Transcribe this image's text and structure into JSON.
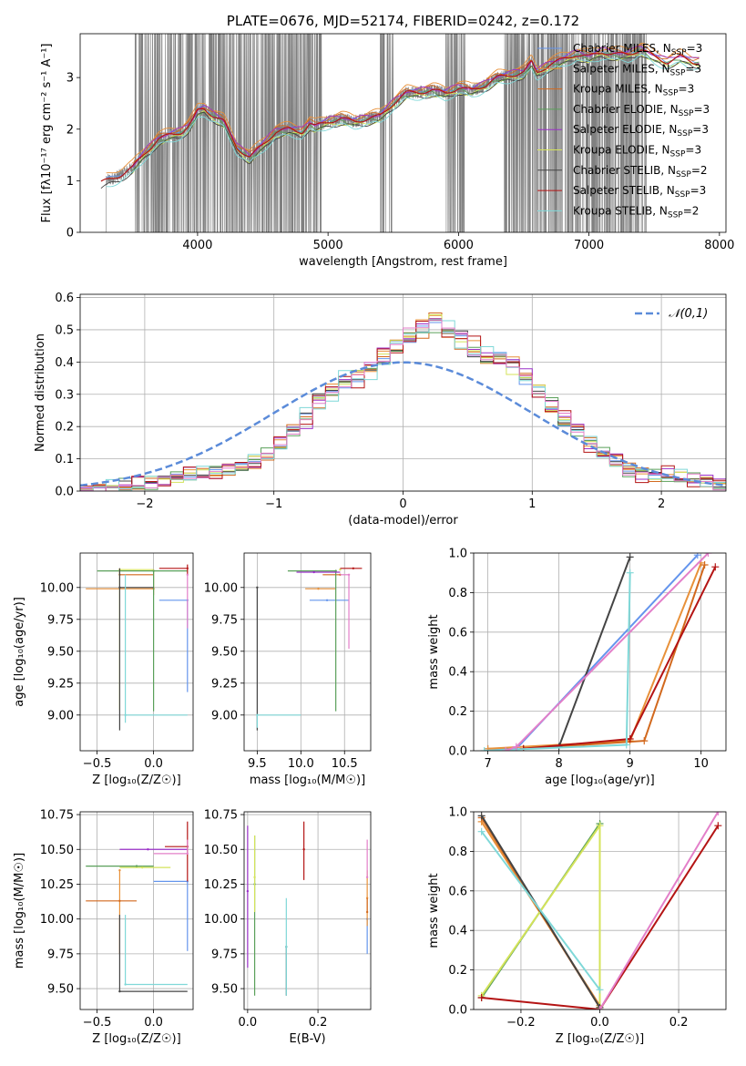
{
  "colors": {
    "observed": "#808080",
    "series": [
      "#6495ed",
      "#e8913a",
      "#d2691e",
      "#5aa05a",
      "#9b30c9",
      "#d4e35a",
      "#444444",
      "#b41414",
      "#7fd8d8",
      "#e37fc9"
    ],
    "normal": "#5b8bd9"
  },
  "chart_data": [
    {
      "id": "spectrum",
      "type": "line",
      "title": "PLATE=0676, MJD=52174, FIBERID=0242, z=0.172",
      "xlabel": "wavelength [Angstrom, rest frame]",
      "ylabel": "Flux [fλ10⁻¹⁷ erg cm⁻² s⁻¹ A⁻¹]",
      "xlim": [
        3100,
        8050
      ],
      "ylim": [
        0,
        3.85
      ],
      "xticks": [
        4000,
        5000,
        6000,
        7000,
        8000
      ],
      "yticks": [
        0,
        1,
        2,
        3
      ],
      "legend": [
        "Chabrier MILES, N_SSP=3",
        "Salpeter MILES, N_SSP=3",
        "Kroupa MILES, N_SSP=3",
        "Chabrier ELODIE, N_SSP=3",
        "Salpeter ELODIE, N_SSP=3",
        "Kroupa ELODIE, N_SSP=3",
        "Chabrier STELIB, N_SSP=2",
        "Salpeter STELIB, N_SSP=3",
        "Kroupa STELIB, N_SSP=2"
      ],
      "legend_position": "upper-right",
      "model_continuum": {
        "x": [
          3250,
          3300,
          3400,
          3500,
          3600,
          3700,
          3800,
          3880,
          3930,
          3970,
          4000,
          4050,
          4100,
          4200,
          4300,
          4400,
          4500,
          4600,
          4700,
          4800,
          4860,
          4900,
          5000,
          5100,
          5200,
          5300,
          5400,
          5500,
          5600,
          5700,
          5800,
          5900,
          6000,
          6100,
          6200,
          6300,
          6400,
          6500,
          6560,
          6600,
          6700,
          6800,
          6900,
          7000,
          7100,
          7200,
          7300,
          7400,
          7500,
          7600,
          7700,
          7800
        ],
        "y": [
          0.95,
          1.0,
          1.1,
          1.25,
          1.55,
          1.8,
          1.9,
          1.95,
          2.05,
          2.2,
          2.35,
          2.4,
          2.3,
          2.15,
          1.65,
          1.45,
          1.7,
          1.95,
          2.0,
          1.95,
          2.1,
          2.05,
          2.15,
          2.2,
          2.15,
          2.2,
          2.25,
          2.5,
          2.7,
          2.72,
          2.75,
          2.7,
          2.8,
          2.75,
          2.85,
          3.0,
          3.05,
          3.1,
          3.3,
          3.1,
          3.25,
          3.35,
          3.45,
          3.4,
          3.5,
          3.45,
          3.45,
          3.55,
          3.4,
          3.3,
          3.4,
          3.3
        ]
      }
    },
    {
      "id": "residuals",
      "type": "line",
      "xlabel": "(data-model)/error",
      "ylabel": "Normed distribution",
      "xlim": [
        -2.5,
        2.5
      ],
      "ylim": [
        0,
        0.61
      ],
      "xticks": [
        -2,
        -1,
        0,
        1,
        2
      ],
      "yticks": [
        0.0,
        0.1,
        0.2,
        0.3,
        0.4,
        0.5,
        0.6
      ],
      "legend": [
        "𝒩(0,1)"
      ],
      "legend_position": "upper-right",
      "histogram": {
        "bin_start": -2.5,
        "bin_width": 0.1,
        "density": [
          0.0,
          0.005,
          0.01,
          0.015,
          0.02,
          0.03,
          0.04,
          0.045,
          0.05,
          0.055,
          0.06,
          0.065,
          0.075,
          0.09,
          0.11,
          0.14,
          0.19,
          0.23,
          0.28,
          0.31,
          0.34,
          0.36,
          0.38,
          0.41,
          0.45,
          0.48,
          0.5,
          0.53,
          0.5,
          0.47,
          0.44,
          0.42,
          0.41,
          0.39,
          0.35,
          0.31,
          0.26,
          0.22,
          0.19,
          0.15,
          0.12,
          0.09,
          0.07,
          0.06,
          0.05,
          0.045,
          0.04,
          0.035,
          0.03,
          0.02
        ]
      }
    },
    {
      "id": "age_vs_Z",
      "type": "scatter",
      "xlabel": "Z [log₁₀(Z/Z☉)]",
      "ylabel": "age [log₁₀(age/yr)]",
      "xlim": [
        -0.65,
        0.35
      ],
      "ylim": [
        8.72,
        10.27
      ],
      "xticks": [
        -0.5,
        0.0
      ],
      "yticks": [
        9.0,
        9.25,
        9.5,
        9.75,
        10.0
      ],
      "errorbars": [
        {
          "s": 0,
          "x": 0.3,
          "y": 9.9,
          "xerr": [
            0.25,
            0.0
          ],
          "yerr": [
            0.72,
            0.0
          ]
        },
        {
          "s": 1,
          "x": 0.0,
          "y": 9.99,
          "xerr": [
            0.6,
            0.0
          ],
          "yerr": [
            0.05,
            0.15
          ]
        },
        {
          "s": 2,
          "x": -0.3,
          "y": 10.1,
          "xerr": [
            0.0,
            0.3
          ],
          "yerr": [
            0.0,
            0.05
          ]
        },
        {
          "s": 3,
          "x": 0.0,
          "y": 10.13,
          "xerr": [
            0.5,
            0.3
          ],
          "yerr": [
            1.1,
            0.0
          ]
        },
        {
          "s": 5,
          "x": -0.3,
          "y": 10.14,
          "xerr": [
            0.0,
            0.3
          ],
          "yerr": [
            1.1,
            0.0
          ]
        },
        {
          "s": 6,
          "x": -0.3,
          "y": 10.0,
          "xerr": [
            0.0,
            0.3
          ],
          "yerr": [
            1.12,
            0.15
          ]
        },
        {
          "s": 7,
          "x": 0.3,
          "y": 10.15,
          "xerr": [
            0.25,
            0.0
          ],
          "yerr": [
            0.05,
            0.03
          ]
        },
        {
          "s": 8,
          "x": -0.25,
          "y": 9.0,
          "xerr": [
            0.0,
            0.55
          ],
          "yerr": [
            0.06,
            1.1
          ]
        },
        {
          "s": 9,
          "x": 0.3,
          "y": 10.1,
          "xerr": [
            0.0,
            0.0
          ],
          "yerr": [
            0.42,
            0.0
          ]
        }
      ]
    },
    {
      "id": "age_vs_mass",
      "type": "scatter",
      "xlabel": "mass [log₁₀(M/M☉)]",
      "ylabel": "",
      "xlim": [
        9.35,
        10.8
      ],
      "ylim": [
        8.72,
        10.27
      ],
      "xticks": [
        9.5,
        10.0,
        10.5
      ],
      "yticks": [
        9.0,
        9.25,
        9.5,
        9.75,
        10.0
      ],
      "errorbars": [
        {
          "s": 0,
          "x": 10.3,
          "y": 9.9,
          "xerr": [
            0.2,
            0.25
          ],
          "yerr": [
            0.0,
            0.0
          ]
        },
        {
          "s": 1,
          "x": 10.2,
          "y": 9.99,
          "xerr": [
            0.15,
            0.2
          ],
          "yerr": [
            0.0,
            0.0
          ]
        },
        {
          "s": 2,
          "x": 10.45,
          "y": 10.1,
          "xerr": [
            0.2,
            0.0
          ],
          "yerr": [
            0.0,
            0.0
          ]
        },
        {
          "s": 3,
          "x": 10.4,
          "y": 10.13,
          "xerr": [
            0.55,
            0.0
          ],
          "yerr": [
            1.1,
            0.0
          ]
        },
        {
          "s": 4,
          "x": 10.15,
          "y": 10.12,
          "xerr": [
            0.2,
            0.3
          ],
          "yerr": [
            0.0,
            0.0
          ]
        },
        {
          "s": 5,
          "x": 10.45,
          "y": 10.14,
          "xerr": [
            0.0,
            0.0
          ],
          "yerr": [
            0.0,
            0.0
          ]
        },
        {
          "s": 6,
          "x": 9.5,
          "y": 10.0,
          "xerr": [
            0.0,
            0.0
          ],
          "yerr": [
            1.12,
            0.0
          ]
        },
        {
          "s": 7,
          "x": 10.6,
          "y": 10.15,
          "xerr": [
            0.15,
            0.1
          ],
          "yerr": [
            0.0,
            0.0
          ]
        },
        {
          "s": 8,
          "x": 9.5,
          "y": 9.0,
          "xerr": [
            0.0,
            0.5
          ],
          "yerr": [
            0.1,
            0.0
          ]
        },
        {
          "s": 9,
          "x": 10.55,
          "y": 10.1,
          "xerr": [
            0.1,
            0.0
          ],
          "yerr": [
            0.58,
            0.0
          ]
        }
      ]
    },
    {
      "id": "massweight_vs_age",
      "type": "line",
      "xlabel": "age [log₁₀(age/yr)]",
      "ylabel": "mass weight",
      "xlim": [
        6.8,
        10.35
      ],
      "ylim": [
        0.0,
        1.0
      ],
      "xticks": [
        7,
        8,
        9,
        10
      ],
      "yticks": [
        0.0,
        0.2,
        0.4,
        0.6,
        0.8,
        1.0
      ],
      "series": [
        {
          "s": 0,
          "x": [
            7.0,
            7.4,
            9.95
          ],
          "y": [
            0.01,
            0.01,
            0.99
          ]
        },
        {
          "s": 1,
          "x": [
            7.0,
            9.0,
            10.0
          ],
          "y": [
            0.01,
            0.05,
            0.95
          ]
        },
        {
          "s": 2,
          "x": [
            7.5,
            9.2,
            10.05
          ],
          "y": [
            0.01,
            0.05,
            0.94
          ]
        },
        {
          "s": 6,
          "x": [
            7.5,
            8.0,
            9.0
          ],
          "y": [
            0.01,
            0.02,
            0.98
          ]
        },
        {
          "s": 7,
          "x": [
            7.5,
            9.0,
            10.2
          ],
          "y": [
            0.01,
            0.06,
            0.93
          ]
        },
        {
          "s": 8,
          "x": [
            6.95,
            8.95,
            9.0
          ],
          "y": [
            0.0,
            0.03,
            0.9
          ]
        },
        {
          "s": 9,
          "x": [
            7.25,
            7.4,
            10.1
          ],
          "y": [
            0.0,
            0.02,
            1.0
          ]
        }
      ]
    },
    {
      "id": "mass_vs_Z",
      "type": "scatter",
      "xlabel": "Z [log₁₀(Z/Z☉)]",
      "ylabel": "mass [log₁₀(M/M☉)]",
      "xlim": [
        -0.65,
        0.35
      ],
      "ylim": [
        9.35,
        10.77
      ],
      "xticks": [
        -0.5,
        0.0
      ],
      "yticks": [
        9.5,
        9.75,
        10.0,
        10.25,
        10.5,
        10.75
      ],
      "errorbars": [
        {
          "s": 0,
          "x": 0.3,
          "y": 10.27,
          "xerr": [
            0.3,
            0.0
          ],
          "yerr": [
            0.5,
            0.0
          ]
        },
        {
          "s": 1,
          "x": -0.3,
          "y": 10.35,
          "xerr": [
            0.0,
            0.0
          ],
          "yerr": [
            0.6,
            0.0
          ]
        },
        {
          "s": 2,
          "x": -0.3,
          "y": 10.13,
          "xerr": [
            0.3,
            0.15
          ],
          "yerr": [
            0.0,
            0.0
          ]
        },
        {
          "s": 3,
          "x": -0.15,
          "y": 10.38,
          "xerr": [
            0.45,
            0.15
          ],
          "yerr": [
            0.0,
            0.0
          ]
        },
        {
          "s": 4,
          "x": -0.05,
          "y": 10.5,
          "xerr": [
            0.25,
            0.35
          ],
          "yerr": [
            0.0,
            0.0
          ]
        },
        {
          "s": 5,
          "x": -0.1,
          "y": 10.37,
          "xerr": [
            0.2,
            0.25
          ],
          "yerr": [
            0.0,
            0.0
          ]
        },
        {
          "s": 6,
          "x": -0.3,
          "y": 9.48,
          "xerr": [
            0.0,
            0.6
          ],
          "yerr": [
            0.0,
            0.55
          ]
        },
        {
          "s": 7,
          "x": 0.3,
          "y": 10.52,
          "xerr": [
            0.2,
            0.0
          ],
          "yerr": [
            0.25,
            0.18
          ]
        },
        {
          "s": 8,
          "x": -0.25,
          "y": 9.53,
          "xerr": [
            0.0,
            0.55
          ],
          "yerr": [
            0.0,
            0.5
          ]
        },
        {
          "s": 9,
          "x": 0.3,
          "y": 10.47,
          "xerr": [
            0.3,
            0.0
          ],
          "yerr": [
            0.0,
            0.1
          ]
        }
      ]
    },
    {
      "id": "mass_vs_EBV",
      "type": "scatter",
      "xlabel": "E(B-V)",
      "ylabel": "",
      "xlim": [
        -0.01,
        0.35
      ],
      "ylim": [
        9.35,
        10.77
      ],
      "xticks": [
        0.0,
        0.2
      ],
      "yticks": [
        9.5,
        9.75,
        10.0,
        10.25,
        10.5,
        10.75
      ],
      "errorbars": [
        {
          "s": 0,
          "x": 0.34,
          "y": 10.0,
          "xerr": [
            0.0,
            0.0
          ],
          "yerr": [
            0.25,
            0.0
          ]
        },
        {
          "s": 1,
          "x": 0.34,
          "y": 10.15,
          "xerr": [
            0.0,
            0.0
          ],
          "yerr": [
            0.2,
            0.2
          ]
        },
        {
          "s": 2,
          "x": 0.34,
          "y": 10.05,
          "xerr": [
            0.0,
            0.0
          ],
          "yerr": [
            0.0,
            0.1
          ]
        },
        {
          "s": 3,
          "x": 0.02,
          "y": 10.25,
          "xerr": [
            0.0,
            0.0
          ],
          "yerr": [
            0.8,
            0.35
          ]
        },
        {
          "s": 4,
          "x": 0.0,
          "y": 10.2,
          "xerr": [
            0.0,
            0.0
          ],
          "yerr": [
            0.55,
            0.47
          ]
        },
        {
          "s": 5,
          "x": 0.02,
          "y": 10.3,
          "xerr": [
            0.0,
            0.0
          ],
          "yerr": [
            0.25,
            0.3
          ]
        },
        {
          "s": 6,
          "x": 0.11,
          "y": 9.8,
          "xerr": [
            0.0,
            0.0
          ],
          "yerr": [
            0.35,
            0.0
          ]
        },
        {
          "s": 7,
          "x": 0.16,
          "y": 10.5,
          "xerr": [
            0.0,
            0.0
          ],
          "yerr": [
            0.22,
            0.2
          ]
        },
        {
          "s": 8,
          "x": 0.11,
          "y": 9.8,
          "xerr": [
            0.0,
            0.0
          ],
          "yerr": [
            0.35,
            0.35
          ]
        },
        {
          "s": 9,
          "x": 0.34,
          "y": 10.3,
          "xerr": [
            0.0,
            0.0
          ],
          "yerr": [
            0.0,
            0.27
          ]
        }
      ]
    },
    {
      "id": "massweight_vs_Z",
      "type": "line",
      "xlabel": "Z [log₁₀(Z/Z☉)]",
      "ylabel": "mass weight",
      "xlim": [
        -0.32,
        0.32
      ],
      "ylim": [
        0.0,
        1.0
      ],
      "xticks": [
        -0.2,
        0.0,
        0.2
      ],
      "yticks": [
        0.0,
        0.2,
        0.4,
        0.6,
        0.8,
        1.0
      ],
      "series": [
        {
          "s": 1,
          "x": [
            -0.3,
            0.0
          ],
          "y": [
            0.95,
            0.02
          ]
        },
        {
          "s": 2,
          "x": [
            -0.3,
            0.0
          ],
          "y": [
            0.97,
            0.01
          ]
        },
        {
          "s": 3,
          "x": [
            -0.3,
            0.0,
            0.0
          ],
          "y": [
            0.06,
            0.94,
            0.01
          ]
        },
        {
          "s": 5,
          "x": [
            -0.3,
            0.0,
            0.0
          ],
          "y": [
            0.07,
            0.93,
            0.01
          ]
        },
        {
          "s": 6,
          "x": [
            -0.3,
            0.0
          ],
          "y": [
            0.98,
            0.01
          ]
        },
        {
          "s": 7,
          "x": [
            -0.3,
            0.0,
            0.3
          ],
          "y": [
            0.06,
            0.0,
            0.93
          ]
        },
        {
          "s": 8,
          "x": [
            -0.3,
            0.0
          ],
          "y": [
            0.9,
            0.1
          ]
        },
        {
          "s": 9,
          "x": [
            0.0,
            0.3
          ],
          "y": [
            0.0,
            1.0
          ]
        }
      ]
    }
  ]
}
